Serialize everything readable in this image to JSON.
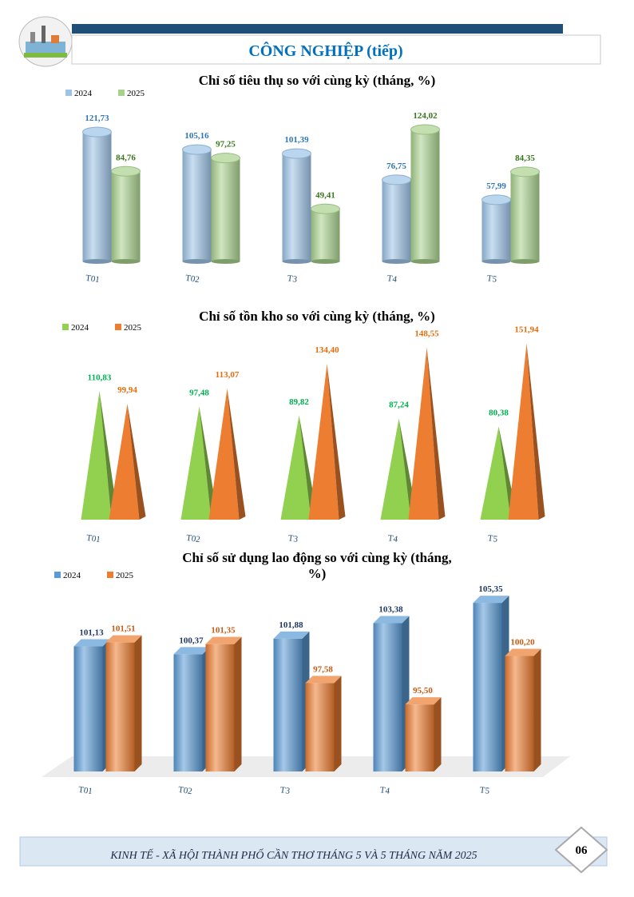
{
  "header": {
    "title": "CÔNG NGHIỆP (tiếp)"
  },
  "chart_data": [
    {
      "type": "bar",
      "bar_shape": "cylinder",
      "title": "Chỉ số tiêu thụ so với cùng kỳ (tháng, %)",
      "legend": "top-left",
      "categories": [
        "T01",
        "T02",
        "T3",
        "T4",
        "T5"
      ],
      "ylim": [
        0,
        130
      ],
      "series": [
        {
          "name": "2024",
          "color": "#9dc3e6",
          "label_color": "#2e75b6",
          "values": [
            121.73,
            105.16,
            101.39,
            76.75,
            57.99
          ],
          "value_labels": [
            "121,73",
            "105,16",
            "101,39",
            "76,75",
            "57,99"
          ]
        },
        {
          "name": "2025",
          "color": "#a9d18e",
          "label_color": "#38761d",
          "values": [
            84.76,
            97.25,
            49.41,
            124.02,
            84.35
          ],
          "value_labels": [
            "84,76",
            "97,25",
            "49,41",
            "124,02",
            "84,35"
          ]
        }
      ]
    },
    {
      "type": "bar",
      "bar_shape": "pyramid",
      "title": "Chỉ số tồn kho so với cùng kỳ (tháng, %)",
      "legend": "top-left",
      "categories": [
        "T01",
        "T02",
        "T3",
        "T4",
        "T5"
      ],
      "ylim": [
        0,
        160
      ],
      "series": [
        {
          "name": "2024",
          "color": "#92d050",
          "label_color": "#00b050",
          "values": [
            110.83,
            97.48,
            89.82,
            87.24,
            80.38
          ],
          "value_labels": [
            "110,83",
            "97,48",
            "89,82",
            "87,24",
            "80,38"
          ]
        },
        {
          "name": "2025",
          "color": "#ed7d31",
          "label_color": "#e46c0a",
          "values": [
            99.94,
            113.07,
            134.4,
            148.55,
            151.94
          ],
          "value_labels": [
            "99,94",
            "113,07",
            "134,40",
            "148,55",
            "151,94"
          ]
        }
      ]
    },
    {
      "type": "bar",
      "bar_shape": "box",
      "title": "Chỉ số sử dụng lao động so với cùng kỳ (tháng, %)",
      "legend": "top-left",
      "categories": [
        "T01",
        "T02",
        "T3",
        "T4",
        "T5"
      ],
      "ylim": [
        89,
        107
      ],
      "series": [
        {
          "name": "2024",
          "color": "#5b9bd5",
          "label_color": "#1f3864",
          "values": [
            101.13,
            100.37,
            101.88,
            103.38,
            105.35
          ],
          "value_labels": [
            "101,13",
            "100,37",
            "101,88",
            "103,38",
            "105,35"
          ]
        },
        {
          "name": "2025",
          "color": "#ed7d31",
          "label_color": "#c55a11",
          "values": [
            101.51,
            101.35,
            97.58,
            95.5,
            100.2
          ],
          "value_labels": [
            "101,51",
            "101,35",
            "97,58",
            "95,50",
            "100,20"
          ]
        }
      ]
    }
  ],
  "footer": {
    "text": "KINH TẾ - XÃ HỘI THÀNH PHỐ CẦN THƠ THÁNG 5 VÀ 5 THÁNG NĂM 2025",
    "page": "06"
  }
}
